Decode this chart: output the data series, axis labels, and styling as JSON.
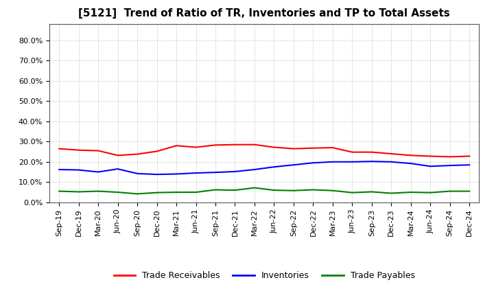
{
  "title": "[5121]  Trend of Ratio of TR, Inventories and TP to Total Assets",
  "x_labels": [
    "Sep-19",
    "Dec-19",
    "Mar-20",
    "Jun-20",
    "Sep-20",
    "Dec-20",
    "Mar-21",
    "Jun-21",
    "Sep-21",
    "Dec-21",
    "Mar-22",
    "Jun-22",
    "Sep-22",
    "Dec-22",
    "Mar-23",
    "Jun-23",
    "Sep-23",
    "Dec-23",
    "Mar-24",
    "Jun-24",
    "Sep-24",
    "Dec-24"
  ],
  "trade_receivables": [
    0.265,
    0.258,
    0.255,
    0.232,
    0.238,
    0.252,
    0.28,
    0.272,
    0.283,
    0.285,
    0.285,
    0.272,
    0.265,
    0.268,
    0.27,
    0.248,
    0.248,
    0.24,
    0.232,
    0.228,
    0.225,
    0.228
  ],
  "inventories": [
    0.162,
    0.16,
    0.15,
    0.165,
    0.142,
    0.138,
    0.14,
    0.145,
    0.148,
    0.152,
    0.162,
    0.175,
    0.185,
    0.195,
    0.2,
    0.2,
    0.202,
    0.2,
    0.192,
    0.178,
    0.182,
    0.185
  ],
  "trade_payables": [
    0.055,
    0.052,
    0.055,
    0.05,
    0.042,
    0.048,
    0.05,
    0.05,
    0.062,
    0.06,
    0.072,
    0.06,
    0.058,
    0.062,
    0.058,
    0.048,
    0.052,
    0.045,
    0.05,
    0.048,
    0.055,
    0.055
  ],
  "tr_color": "#FF0000",
  "inv_color": "#0000FF",
  "tp_color": "#008000",
  "ylim_min": 0.0,
  "ylim_max": 0.88,
  "yticks": [
    0.0,
    0.1,
    0.2,
    0.3,
    0.4,
    0.5,
    0.6,
    0.7,
    0.8
  ],
  "legend_labels": [
    "Trade Receivables",
    "Inventories",
    "Trade Payables"
  ],
  "bg_color": "#FFFFFF",
  "grid_color": "#999999",
  "line_width": 1.5,
  "title_fontsize": 11,
  "tick_fontsize": 8,
  "legend_fontsize": 9
}
